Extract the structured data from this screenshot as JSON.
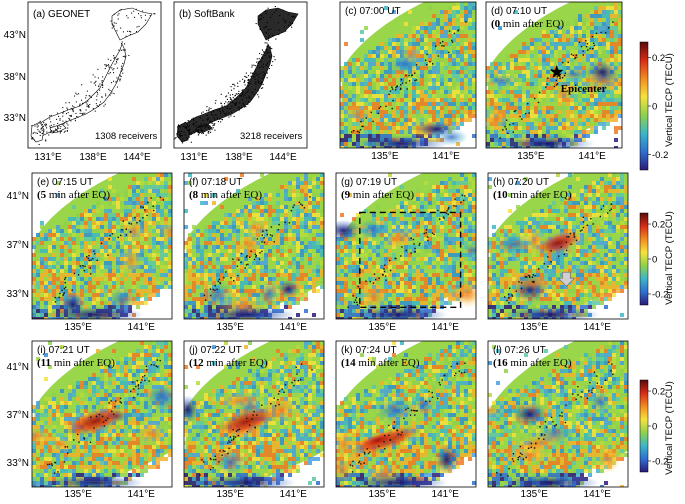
{
  "figure": {
    "top_row": {
      "lat_ticks": [
        "43°N",
        "38°N",
        "33°N"
      ],
      "lon_ticks": [
        "131°E",
        "138°E",
        "144°E"
      ]
    },
    "tec_rows": {
      "lat_ticks": [
        "41°N",
        "37°N",
        "33°N"
      ],
      "lon_ticks": [
        "135°E",
        "141°E"
      ]
    },
    "maps": [
      {
        "id": "a",
        "label": "(a) GEONET",
        "count": "1308 receivers"
      },
      {
        "id": "b",
        "label": "(b) SoftBank",
        "count": "3218 receivers"
      }
    ],
    "panels": [
      {
        "id": "c",
        "time": "(c) 07:00 UT",
        "sub_num": "",
        "sub_rest": ""
      },
      {
        "id": "d",
        "time": "(d) 07:10 UT",
        "sub_num": "(0",
        "sub_rest": " min after EQ)"
      },
      {
        "id": "e",
        "time": "(e) 07:15 UT",
        "sub_num": "(5",
        "sub_rest": " min after EQ)"
      },
      {
        "id": "f",
        "time": "(f) 07:18 UT",
        "sub_num": "(8",
        "sub_rest": " min after EQ)"
      },
      {
        "id": "g",
        "time": "(g) 07:19 UT",
        "sub_num": "(9",
        "sub_rest": " min after EQ)"
      },
      {
        "id": "h",
        "time": "(h) 07:20 UT",
        "sub_num": "(10",
        "sub_rest": " min after EQ)"
      },
      {
        "id": "i",
        "time": "(i) 07:21 UT",
        "sub_num": "(11",
        "sub_rest": " min after EQ)"
      },
      {
        "id": "j",
        "time": "(j) 07:22 UT",
        "sub_num": "(12",
        "sub_rest": " min after EQ)"
      },
      {
        "id": "k",
        "time": "(k) 07:24 UT",
        "sub_num": "(14",
        "sub_rest": " min after EQ)"
      },
      {
        "id": "l",
        "time": "(l) 07:26 UT",
        "sub_num": "(16",
        "sub_rest": " min after EQ)"
      }
    ],
    "epicenter_label": "Epicenter",
    "colorbar": {
      "label": "Vertical TECP (TECU)",
      "ticks": [
        "0.2",
        "0",
        "-0.2"
      ],
      "stops": [
        "#5a0c0c",
        "#d92b16",
        "#f28c1f",
        "#f7e23b",
        "#8fd14a",
        "#3cb6c7",
        "#2f6fd0",
        "#2a1a7a"
      ]
    }
  }
}
